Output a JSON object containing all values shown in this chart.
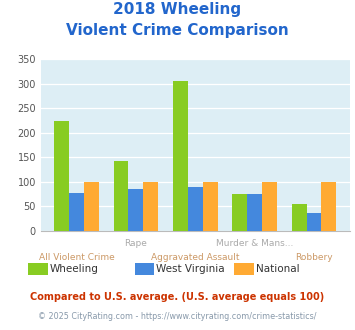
{
  "title_line1": "2018 Wheeling",
  "title_line2": "Violent Crime Comparison",
  "wheeling": [
    225,
    143,
    305,
    75,
    55
  ],
  "west_virginia": [
    78,
    85,
    90,
    75,
    37
  ],
  "national": [
    100,
    100,
    100,
    100,
    100
  ],
  "wheeling_color": "#88cc22",
  "wv_color": "#4488dd",
  "national_color": "#ffaa33",
  "bg_color": "#ddeef5",
  "title_color": "#2266cc",
  "ylim": [
    0,
    350
  ],
  "yticks": [
    0,
    50,
    100,
    150,
    200,
    250,
    300,
    350
  ],
  "top_labels": {
    "1": "Rape",
    "3": "Murder & Mans..."
  },
  "bot_labels": {
    "0": "All Violent Crime",
    "2": "Aggravated Assault",
    "4": "Robbery"
  },
  "legend_labels": [
    "Wheeling",
    "West Virginia",
    "National"
  ],
  "footnote1": "Compared to U.S. average. (U.S. average equals 100)",
  "footnote2": "© 2025 CityRating.com - https://www.cityrating.com/crime-statistics/",
  "footnote1_color": "#cc3300",
  "footnote2_color": "#8899aa",
  "top_label_color": "#aaaaaa",
  "bot_label_color": "#cc9966"
}
